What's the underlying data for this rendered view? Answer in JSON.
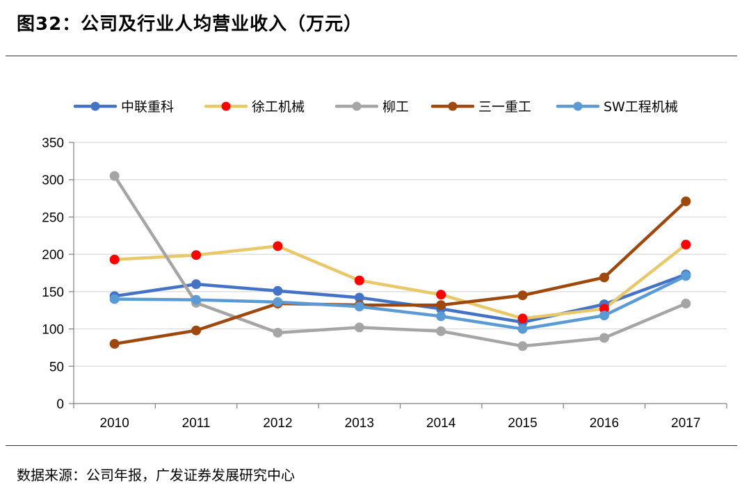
{
  "figure": {
    "title": "图32：公司及行业人均营业收入（万元）",
    "source": "数据来源：公司年报，广发证券发展研究中心"
  },
  "colors": {
    "zoomlion": "#4472c4",
    "xcmg_line": "#e8c86a",
    "xcmg_marker": "#ff0000",
    "liugong": "#a5a5a5",
    "sany": "#9e480e",
    "sw": "#5b9bd5",
    "grid": "#d9d9d9",
    "axis": "#7f7f7f"
  },
  "chart_data": {
    "type": "line",
    "title": "",
    "xlabel": "",
    "ylabel": "",
    "ylim": [
      0,
      350
    ],
    "yticks": [
      0,
      50,
      100,
      150,
      200,
      250,
      300,
      350
    ],
    "grid": true,
    "legend_position": "top",
    "categories": [
      "2010",
      "2011",
      "2012",
      "2013",
      "2014",
      "2015",
      "2016",
      "2017"
    ],
    "series": [
      {
        "name": "中联重科",
        "key": "zoomlion",
        "values": [
          144,
          160,
          151,
          142,
          127,
          109,
          133,
          173
        ]
      },
      {
        "name": "徐工机械",
        "key": "xcmg",
        "values": [
          193,
          199,
          211,
          165,
          146,
          114,
          127,
          213
        ]
      },
      {
        "name": "柳工",
        "key": "liugong",
        "values": [
          305,
          135,
          95,
          102,
          97,
          77,
          88,
          134
        ]
      },
      {
        "name": "三一重工",
        "key": "sany",
        "values": [
          80,
          98,
          134,
          132,
          132,
          145,
          169,
          271
        ]
      },
      {
        "name": "SW工程机械",
        "key": "sw",
        "values": [
          140,
          139,
          136,
          130,
          117,
          100,
          118,
          171
        ]
      }
    ]
  }
}
